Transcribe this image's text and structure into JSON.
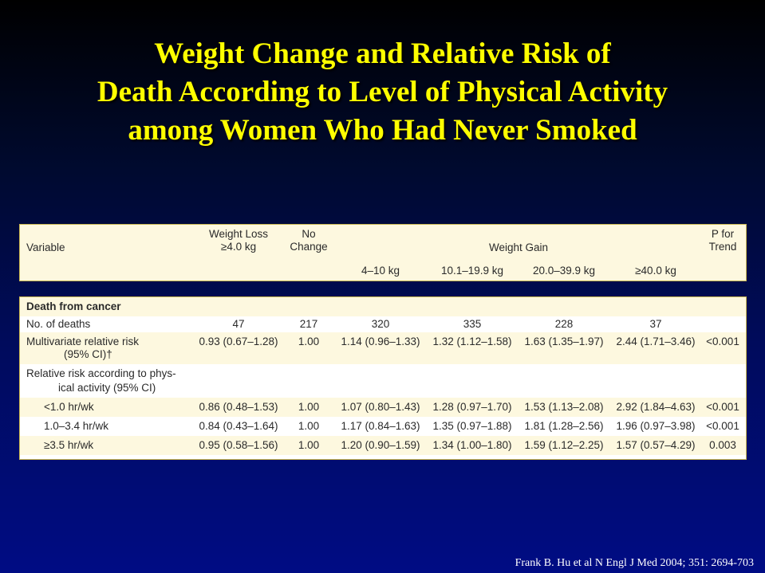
{
  "title_lines": [
    "Weight Change and Relative Risk of",
    "Death According to Level of Physical Activity",
    "among Women Who Had Never Smoked"
  ],
  "table": {
    "headers": {
      "variable": "Variable",
      "weight_loss_1": "Weight Loss",
      "weight_loss_2": "≥4.0 kg",
      "no_change_1": "No",
      "no_change_2": "Change",
      "weight_gain": "Weight Gain",
      "p_trend_1": "P for",
      "p_trend_2": "Trend",
      "sub": [
        "4–10 kg",
        "10.1–19.9 kg",
        "20.0–39.9 kg",
        "≥40.0 kg"
      ]
    },
    "section": "Death from cancer",
    "rows": [
      {
        "label": "No. of deaths",
        "values": [
          "47",
          "217",
          "320",
          "335",
          "228",
          "37",
          ""
        ]
      },
      {
        "label": "Multivariate relative risk",
        "label2": "(95% CI)†",
        "values": [
          "0.93 (0.67–1.28)",
          "1.00",
          "1.14 (0.96–1.33)",
          "1.32 (1.12–1.58)",
          "1.63 (1.35–1.97)",
          "2.44 (1.71–3.46)",
          "<0.001"
        ]
      },
      {
        "label": "Relative risk according to phys-",
        "label2": "ical activity (95% CI)"
      },
      {
        "label": "<1.0 hr/wk",
        "values": [
          "0.86 (0.48–1.53)",
          "1.00",
          "1.07 (0.80–1.43)",
          "1.28 (0.97–1.70)",
          "1.53 (1.13–2.08)",
          "2.92 (1.84–4.63)",
          "<0.001"
        ]
      },
      {
        "label": "1.0–3.4 hr/wk",
        "values": [
          "0.84 (0.43–1.64)",
          "1.00",
          "1.17 (0.84–1.63)",
          "1.35 (0.97–1.88)",
          "1.81 (1.28–2.56)",
          "1.96 (0.97–3.98)",
          "<0.001"
        ]
      },
      {
        "label": "≥3.5 hr/wk",
        "values": [
          "0.95 (0.58–1.56)",
          "1.00",
          "1.20 (0.90–1.59)",
          "1.34 (1.00–1.80)",
          "1.59 (1.12–2.25)",
          "1.57 (0.57–4.29)",
          "0.003"
        ]
      }
    ]
  },
  "reference": "Frank B. Hu et al N Engl J Med 2004; 351: 2694-703"
}
